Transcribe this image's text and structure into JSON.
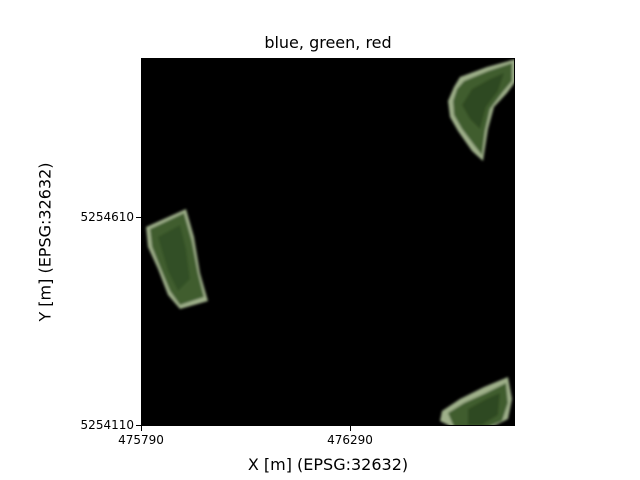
{
  "title": "blue, green, red",
  "x_axis": {
    "label": "X [m] (EPSG:32632)",
    "ticks": [
      "475790",
      "476290"
    ]
  },
  "y_axis": {
    "label": "Y [m] (EPSG:32632)",
    "ticks": [
      "5254610",
      "5254110"
    ]
  },
  "colors": {
    "background": "#000000",
    "vegetation": "#3f5d2d",
    "edge": "#9fb08a"
  }
}
